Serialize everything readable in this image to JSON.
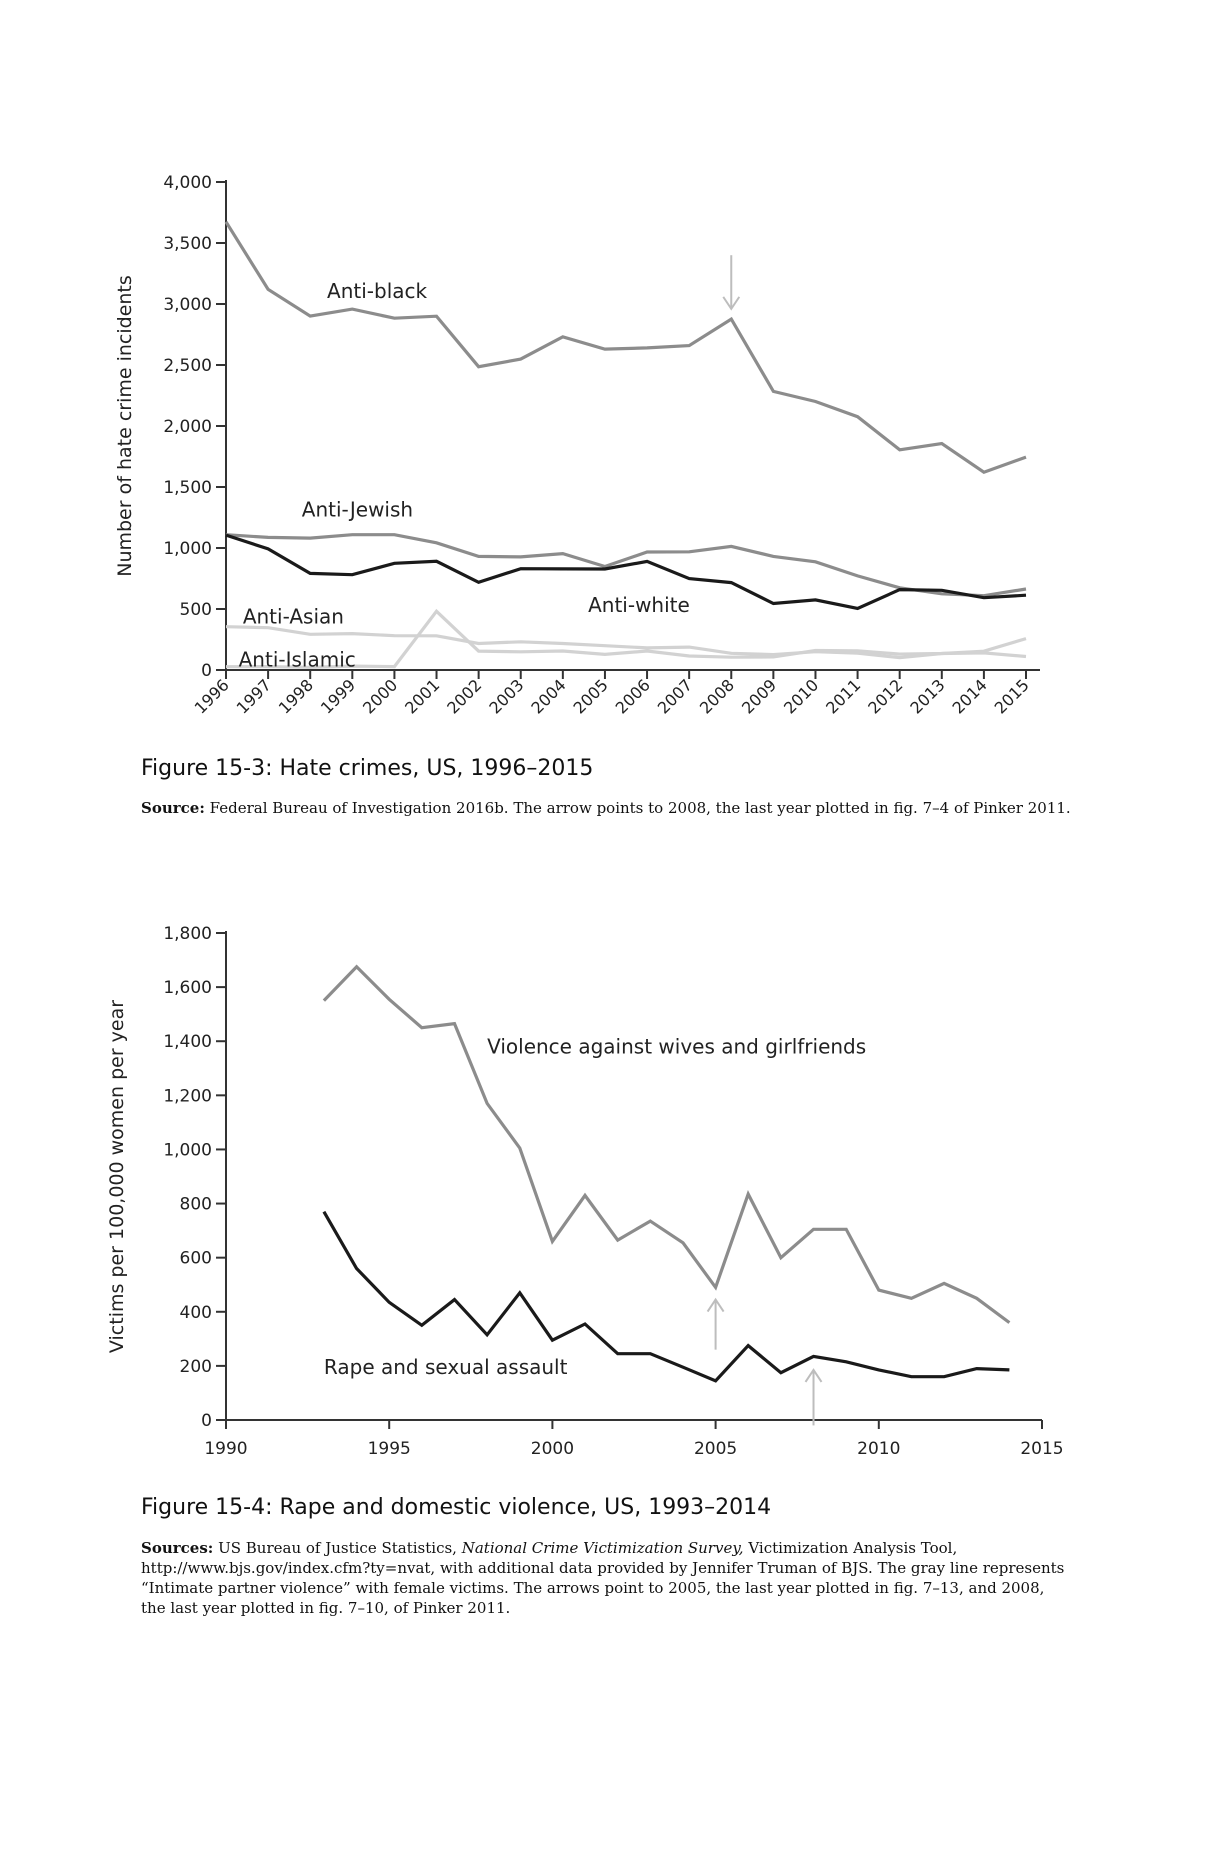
{
  "chart_data": [
    {
      "type": "line",
      "title": "Figure 15-3: Hate crimes, US, 1996–2015",
      "source_label": "Source:",
      "source_text": "Federal Bureau of Investigation 2016b. The arrow points to 2008, the last year plotted in fig. 7–4 of Pinker 2011.",
      "ylabel": "Number of hate crime incidents",
      "xlabel": "",
      "ylim": [
        0,
        4000
      ],
      "yticks": [
        0,
        500,
        1000,
        1500,
        2000,
        2500,
        3000,
        3500,
        4000
      ],
      "ytick_labels": [
        "0",
        "500",
        "1,000",
        "1,500",
        "2,000",
        "2,500",
        "3,000",
        "3,500",
        "4,000"
      ],
      "x": [
        1996,
        1997,
        1998,
        1999,
        2000,
        2001,
        2002,
        2003,
        2004,
        2005,
        2006,
        2007,
        2008,
        2009,
        2010,
        2011,
        2012,
        2013,
        2014,
        2015
      ],
      "xtick_labels": [
        "1996",
        "1997",
        "1998",
        "1999",
        "2000",
        "2001",
        "2002",
        "2003",
        "2004",
        "2005",
        "2006",
        "2007",
        "2008",
        "2009",
        "2010",
        "2011",
        "2012",
        "2013",
        "2014",
        "2015"
      ],
      "series": [
        {
          "name": "Anti-black",
          "color": "#8c8c8c",
          "width": 3.2,
          "values": [
            3674,
            3120,
            2901,
            2958,
            2884,
            2900,
            2486,
            2548,
            2731,
            2630,
            2640,
            2659,
            2876,
            2284,
            2201,
            2076,
            1805,
            1856,
            1621,
            1745
          ]
        },
        {
          "name": "Anti-Jewish",
          "color": "#8c8c8c",
          "width": 3.2,
          "values": [
            1109,
            1087,
            1081,
            1109,
            1109,
            1043,
            931,
            927,
            954,
            848,
            967,
            969,
            1013,
            931,
            887,
            771,
            674,
            625,
            609,
            664
          ]
        },
        {
          "name": "Anti-white",
          "color": "#1a1a1a",
          "width": 3.2,
          "values": [
            1106,
            993,
            792,
            781,
            875,
            891,
            719,
            830,
            829,
            828,
            890,
            749,
            716,
            545,
            575,
            504,
            659,
            653,
            593,
            613
          ]
        },
        {
          "name": "Anti-Asian",
          "color": "#d2d2d2",
          "width": 3.2,
          "values": [
            355,
            347,
            293,
            298,
            281,
            280,
            217,
            231,
            217,
            199,
            181,
            188,
            137,
            126,
            150,
            138,
            102,
            135,
            140,
            111
          ]
        },
        {
          "name": "Anti-Islamic",
          "color": "#d2d2d2",
          "width": 3.2,
          "values": [
            27,
            28,
            22,
            32,
            28,
            481,
            155,
            149,
            156,
            128,
            156,
            115,
            105,
            107,
            160,
            157,
            130,
            135,
            154,
            257
          ]
        }
      ],
      "annotations": [
        {
          "text": "Anti-black",
          "x": 1998.4,
          "y": 3050
        },
        {
          "text": "Anti-Jewish",
          "x": 1997.8,
          "y": 1260
        },
        {
          "text": "Anti-white",
          "x": 2004.6,
          "y": 475
        },
        {
          "text": "Anti-Asian",
          "x": 1996.4,
          "y": 380
        },
        {
          "text": "Anti-Islamic",
          "x": 1996.3,
          "y": 30
        }
      ],
      "arrows": [
        {
          "x": 2008,
          "y_from": 3400,
          "y_to": 2960,
          "color": "#bdbdbd"
        }
      ]
    },
    {
      "type": "line",
      "title": "Figure 15-4: Rape and domestic violence, US, 1993–2014",
      "source_label": "Sources:",
      "source_pre": "US Bureau of Justice Statistics, ",
      "source_italic": "National Crime Victimization Survey,",
      "source_post": " Victimization Analysis Tool, http://www.bjs.gov/index.cfm?ty=nvat, with additional data provided by Jennifer Truman of BJS. The gray line represents “Intimate partner violence” with female victims. The arrows point to 2005, the last year plotted in fig. 7–13, and 2008, the last year plotted in fig. 7–10, of Pinker 2011.",
      "ylabel": "Victims per 100,000 women per year",
      "xlabel": "",
      "ylim": [
        0,
        1800
      ],
      "xlim": [
        1990,
        2015
      ],
      "yticks": [
        0,
        200,
        400,
        600,
        800,
        1000,
        1200,
        1400,
        1600,
        1800
      ],
      "ytick_labels": [
        "0",
        "200",
        "400",
        "600",
        "800",
        "1,000",
        "1,200",
        "1,400",
        "1,600",
        "1,800"
      ],
      "xticks": [
        1990,
        1995,
        2000,
        2005,
        2010,
        2015
      ],
      "xtick_labels": [
        "1990",
        "1995",
        "2000",
        "2005",
        "2010",
        "2015"
      ],
      "x": [
        1993,
        1994,
        1995,
        1996,
        1997,
        1998,
        1999,
        2000,
        2001,
        2002,
        2003,
        2004,
        2005,
        2006,
        2007,
        2008,
        2009,
        2010,
        2011,
        2012,
        2013,
        2014
      ],
      "series": [
        {
          "name": "Violence against wives and girlfriends",
          "color": "#8c8c8c",
          "width": 3.2,
          "values": [
            1550,
            1675,
            1555,
            1450,
            1465,
            1170,
            1005,
            660,
            830,
            665,
            735,
            655,
            490,
            835,
            600,
            705,
            705,
            480,
            450,
            505,
            450,
            360
          ]
        },
        {
          "name": "Rape and sexual assault",
          "color": "#1a1a1a",
          "width": 3.2,
          "values": [
            770,
            560,
            435,
            350,
            445,
            315,
            470,
            295,
            355,
            245,
            245,
            195,
            145,
            275,
            175,
            235,
            215,
            185,
            160,
            160,
            190,
            185
          ]
        }
      ],
      "annotations": [
        {
          "text": "Violence against wives and girlfriends",
          "x": 1998.0,
          "y": 1355
        },
        {
          "text": "Rape and sexual assault",
          "x": 1993.0,
          "y": 170
        }
      ],
      "arrows": [
        {
          "x": 2005,
          "y_from": 260,
          "y_to": 445,
          "color": "#bdbdbd"
        },
        {
          "x": 2008,
          "y_from": -20,
          "y_to": 185,
          "color": "#bdbdbd"
        }
      ]
    }
  ]
}
